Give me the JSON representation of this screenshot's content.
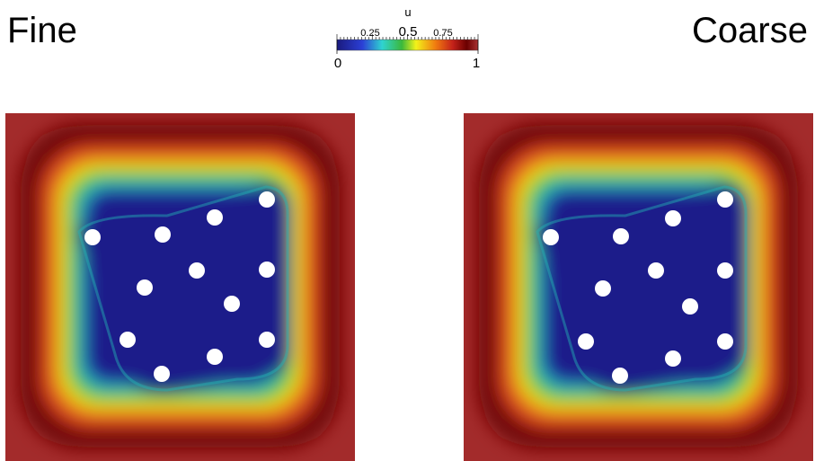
{
  "titles": {
    "left": "Fine",
    "right": "Coarse"
  },
  "colorbar": {
    "variable": "u",
    "min": "0",
    "max": "1",
    "tick_025": "0.25",
    "tick_050": "0.5",
    "tick_075": "0.75",
    "colors": [
      "#1a1a7e",
      "#2b3fd6",
      "#2fd3d1",
      "#3bb83b",
      "#f2f21a",
      "#f07a10",
      "#c4221a",
      "#6b0000",
      "#a83232"
    ]
  },
  "panels": [
    {
      "name": "Fine"
    },
    {
      "name": "Coarse"
    }
  ]
}
